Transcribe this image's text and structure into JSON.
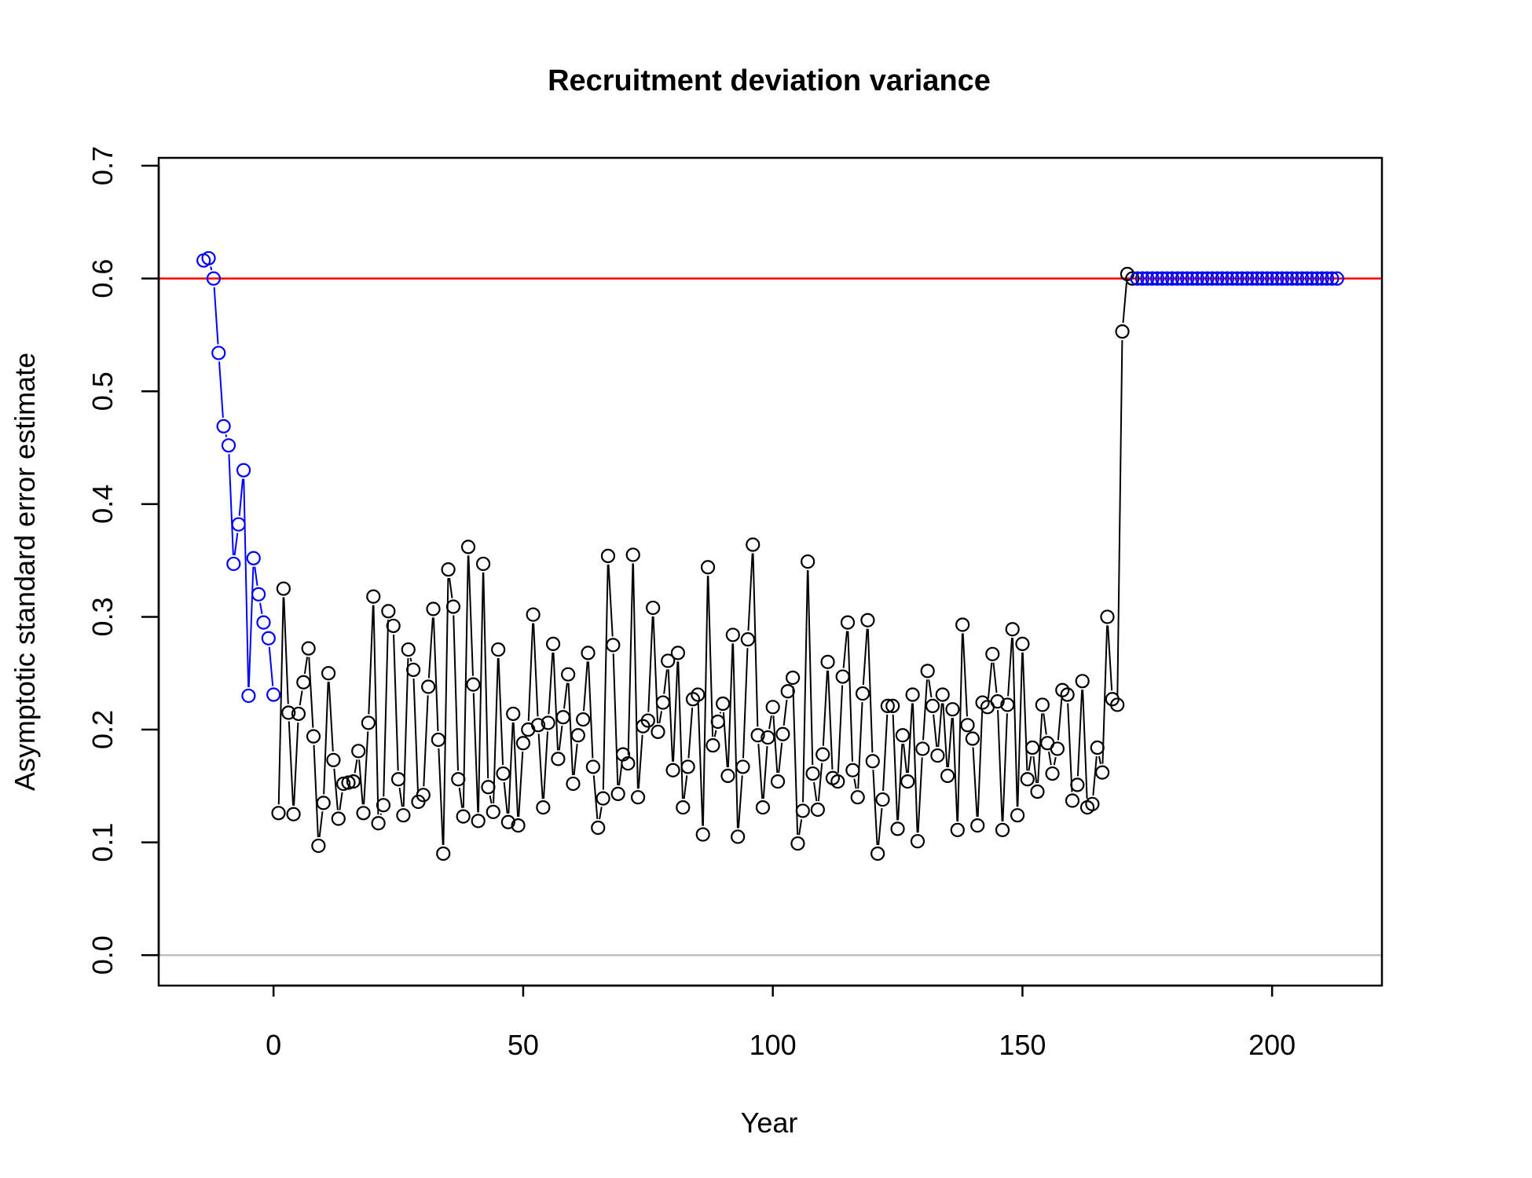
{
  "chart_data": {
    "type": "scatter",
    "title": "Recruitment deviation variance",
    "xlabel": "Year",
    "ylabel": "Asymptotic standard error estimate",
    "xlim": [
      -23,
      222
    ],
    "ylim": [
      -0.027,
      0.707
    ],
    "xticks": [
      0,
      50,
      100,
      150,
      200
    ],
    "yticks": [
      0.0,
      0.1,
      0.2,
      0.3,
      0.4,
      0.5,
      0.6,
      0.7
    ],
    "xtick_labels": [
      "0",
      "50",
      "100",
      "150",
      "200"
    ],
    "ytick_labels": [
      "0.0",
      "0.1",
      "0.2",
      "0.3",
      "0.4",
      "0.5",
      "0.6",
      "0.7"
    ],
    "reference_lines": [
      {
        "y": 0.6,
        "color": "#ff0000"
      },
      {
        "y": 0.0,
        "color": "#bebebe"
      }
    ],
    "grid": false,
    "series": [
      {
        "color": "#0000ff",
        "x": [
          -14,
          -13,
          -12,
          -11,
          -10,
          -9,
          -8,
          -7,
          -6,
          -5,
          -4,
          -3,
          -2,
          -1,
          0
        ],
        "y": [
          0.616,
          0.618,
          0.6,
          0.534,
          0.469,
          0.452,
          0.347,
          0.382,
          0.43,
          0.23,
          0.352,
          0.32,
          0.295,
          0.281,
          0.231
        ]
      },
      {
        "color": "#000000",
        "x": [
          1,
          2,
          3,
          4,
          5,
          6,
          7,
          8,
          9,
          10,
          11,
          12,
          13,
          14,
          15,
          16,
          17,
          18,
          19,
          20,
          21,
          22,
          23,
          24,
          25,
          26,
          27,
          28,
          29,
          30,
          31,
          32,
          33,
          34,
          35,
          36,
          37,
          38,
          39,
          40,
          41,
          42,
          43,
          44,
          45,
          46,
          47,
          48,
          49,
          50,
          51,
          52,
          53,
          54,
          55,
          56,
          57,
          58,
          59,
          60,
          61,
          62,
          63,
          64,
          65,
          66,
          67,
          68,
          69,
          70,
          71,
          72,
          73,
          74,
          75,
          76,
          77,
          78,
          79,
          80,
          81,
          82,
          83,
          84,
          85,
          86,
          87,
          88,
          89,
          90,
          91,
          92,
          93,
          94,
          95,
          96,
          97,
          98,
          99,
          100,
          101,
          102,
          103,
          104,
          105,
          106,
          107,
          108,
          109,
          110,
          111,
          112,
          113,
          114,
          115,
          116,
          117,
          118,
          119,
          120,
          121,
          122,
          123,
          124,
          125,
          126,
          127,
          128,
          129,
          130,
          131,
          132,
          133,
          134,
          135,
          136,
          137,
          138,
          139,
          140,
          141,
          142,
          143,
          144,
          145,
          146,
          147,
          148,
          149,
          150,
          151,
          152,
          153,
          154,
          155,
          156,
          157,
          158,
          159,
          160,
          161,
          162,
          163,
          164,
          165,
          166,
          167,
          168,
          169,
          170,
          171,
          172
        ],
        "y": [
          0.126,
          0.325,
          0.215,
          0.125,
          0.214,
          0.242,
          0.272,
          0.194,
          0.097,
          0.135,
          0.25,
          0.173,
          0.121,
          0.152,
          0.153,
          0.154,
          0.181,
          0.126,
          0.206,
          0.318,
          0.117,
          0.133,
          0.305,
          0.292,
          0.156,
          0.124,
          0.271,
          0.253,
          0.136,
          0.142,
          0.238,
          0.307,
          0.191,
          0.09,
          0.342,
          0.309,
          0.156,
          0.123,
          0.362,
          0.24,
          0.119,
          0.347,
          0.149,
          0.127,
          0.271,
          0.161,
          0.118,
          0.214,
          0.115,
          0.188,
          0.2,
          0.302,
          0.204,
          0.131,
          0.206,
          0.276,
          0.174,
          0.211,
          0.249,
          0.152,
          0.195,
          0.209,
          0.268,
          0.167,
          0.113,
          0.139,
          0.354,
          0.275,
          0.143,
          0.178,
          0.17,
          0.355,
          0.14,
          0.203,
          0.208,
          0.308,
          0.198,
          0.224,
          0.261,
          0.164,
          0.268,
          0.131,
          0.167,
          0.227,
          0.231,
          0.107,
          0.344,
          0.186,
          0.207,
          0.223,
          0.159,
          0.284,
          0.105,
          0.167,
          0.28,
          0.364,
          0.195,
          0.131,
          0.193,
          0.22,
          0.154,
          0.196,
          0.234,
          0.246,
          0.099,
          0.128,
          0.349,
          0.161,
          0.129,
          0.178,
          0.26,
          0.157,
          0.154,
          0.247,
          0.295,
          0.164,
          0.14,
          0.232,
          0.297,
          0.172,
          0.09,
          0.138,
          0.221,
          0.221,
          0.112,
          0.195,
          0.154,
          0.231,
          0.101,
          0.183,
          0.252,
          0.221,
          0.177,
          0.231,
          0.159,
          0.218,
          0.111,
          0.293,
          0.204,
          0.192,
          0.115,
          0.224,
          0.22,
          0.267,
          0.225,
          0.111,
          0.222,
          0.289,
          0.124,
          0.276,
          0.156,
          0.184,
          0.145,
          0.222,
          0.188,
          0.161,
          0.183,
          0.235,
          0.231,
          0.137,
          0.151,
          0.243,
          0.131,
          0.134,
          0.184,
          0.162,
          0.3,
          0.227,
          0.222,
          0.553,
          0.604,
          0.6
        ]
      },
      {
        "color": "#0000ff",
        "x": [
          173,
          174,
          175,
          176,
          177,
          178,
          179,
          180,
          181,
          182,
          183,
          184,
          185,
          186,
          187,
          188,
          189,
          190,
          191,
          192,
          193,
          194,
          195,
          196,
          197,
          198,
          199,
          200,
          201,
          202,
          203,
          204,
          205,
          206,
          207,
          208,
          209,
          210,
          211,
          212,
          213
        ],
        "y": [
          0.6,
          0.6,
          0.6,
          0.6,
          0.6,
          0.6,
          0.6,
          0.6,
          0.6,
          0.6,
          0.6,
          0.6,
          0.6,
          0.6,
          0.6,
          0.6,
          0.6,
          0.6,
          0.6,
          0.6,
          0.6,
          0.6,
          0.6,
          0.6,
          0.6,
          0.6,
          0.6,
          0.6,
          0.6,
          0.6,
          0.6,
          0.6,
          0.6,
          0.6,
          0.6,
          0.6,
          0.6,
          0.6,
          0.6,
          0.6,
          0.6
        ]
      }
    ]
  }
}
